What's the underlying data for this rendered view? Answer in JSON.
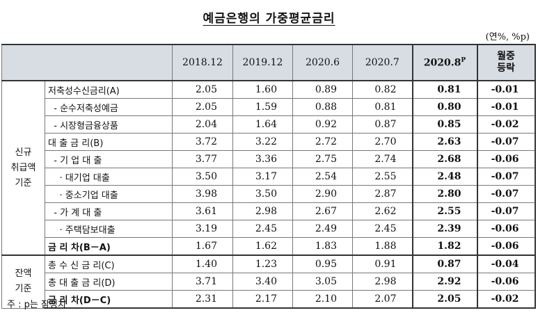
{
  "title": "예금은행의 가중평균금리",
  "unit": "(연%, %p)",
  "columns": [
    "2018.12",
    "2019.12",
    "2020.6",
    "2020.7",
    "2020.8",
    "월중\n등락"
  ],
  "highlight_sup": "P",
  "groups": [
    {
      "label": "신규\n취급액\n기준",
      "rows": [
        {
          "label": "저축성수신금리(A)",
          "values": [
            "2.05",
            "1.60",
            "0.89",
            "0.82",
            "0.81",
            "-0.01"
          ],
          "bold": false
        },
        {
          "label": "  - 순수저축성예금",
          "values": [
            "2.05",
            "1.59",
            "0.88",
            "0.81",
            "0.80",
            "-0.01"
          ],
          "bold": false
        },
        {
          "label": "  - 시장형금융상품",
          "values": [
            "2.04",
            "1.64",
            "0.92",
            "0.87",
            "0.85",
            "-0.02"
          ],
          "bold": false
        },
        {
          "label": "대 출 금 리(B)",
          "values": [
            "3.72",
            "3.22",
            "2.72",
            "2.70",
            "2.63",
            "-0.07"
          ],
          "bold": false
        },
        {
          "label": "  - 기 업 대 출",
          "values": [
            "3.77",
            "3.36",
            "2.75",
            "2.74",
            "2.68",
            "-0.06"
          ],
          "bold": false
        },
        {
          "label": "    · 대기업 대출",
          "values": [
            "3.50",
            "3.17",
            "2.54",
            "2.55",
            "2.48",
            "-0.07"
          ],
          "bold": false
        },
        {
          "label": "    · 중소기업 대출",
          "values": [
            "3.98",
            "3.50",
            "2.90",
            "2.87",
            "2.80",
            "-0.07"
          ],
          "bold": false
        },
        {
          "label": "  - 가 계 대 출",
          "values": [
            "3.61",
            "2.98",
            "2.67",
            "2.62",
            "2.55",
            "-0.07"
          ],
          "bold": false
        },
        {
          "label": "    · 주택담보대출",
          "values": [
            "3.19",
            "2.45",
            "2.49",
            "2.45",
            "2.39",
            "-0.06"
          ],
          "bold": false
        },
        {
          "label": "금 리 차(B－A)",
          "values": [
            "1.67",
            "1.62",
            "1.83",
            "1.88",
            "1.82",
            "-0.06"
          ],
          "bold": true
        }
      ]
    },
    {
      "label": "잔액\n기준",
      "rows": [
        {
          "label": "총 수 신 금 리(C)",
          "values": [
            "1.40",
            "1.23",
            "0.95",
            "0.91",
            "0.87",
            "-0.04"
          ],
          "bold": false
        },
        {
          "label": "총 대 출 금 리(D)",
          "values": [
            "3.71",
            "3.40",
            "3.05",
            "2.98",
            "2.92",
            "-0.06"
          ],
          "bold": false
        },
        {
          "label": "금 리 차(D－C)",
          "values": [
            "2.31",
            "2.17",
            "2.10",
            "2.07",
            "2.05",
            "-0.02"
          ],
          "bold": true
        }
      ]
    }
  ],
  "note": "주 : p는 잠정치"
}
